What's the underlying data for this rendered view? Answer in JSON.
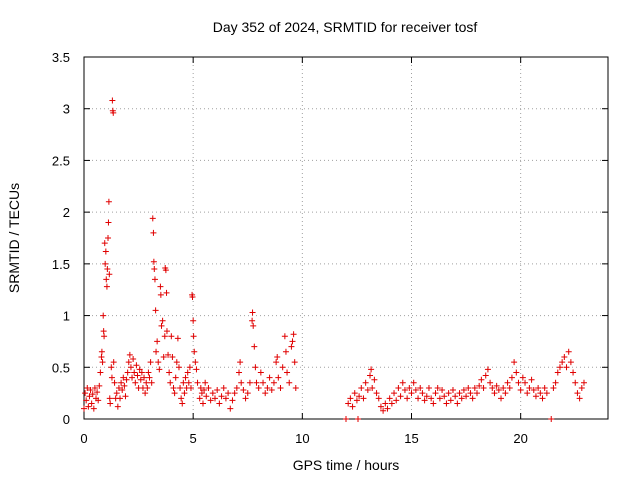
{
  "chart_data": {
    "type": "scatter",
    "title": "Day 352 of 2024, SRMTID for receiver tosf",
    "xlabel": "GPS time / hours",
    "ylabel": "SRMTID / TECUs",
    "xlim": [
      0,
      24
    ],
    "ylim": [
      0,
      3.5
    ],
    "xticks": [
      0,
      5,
      10,
      15,
      20
    ],
    "xtick_labels": [
      "0",
      "5",
      "10",
      "15",
      "20"
    ],
    "yticks": [
      0,
      0.5,
      1,
      1.5,
      2,
      2.5,
      3,
      3.5
    ],
    "ytick_labels": [
      "0",
      "0.5",
      "1",
      "1.5",
      "2",
      "2.5",
      "3",
      "3.5"
    ],
    "grid": true,
    "marker": "+",
    "color": "#e00000",
    "series": [
      {
        "name": "SRMTID",
        "points": [
          [
            0.0,
            0.1
          ],
          [
            0.05,
            0.25
          ],
          [
            0.1,
            0.18
          ],
          [
            0.15,
            0.3
          ],
          [
            0.2,
            0.12
          ],
          [
            0.25,
            0.22
          ],
          [
            0.3,
            0.28
          ],
          [
            0.35,
            0.15
          ],
          [
            0.4,
            0.24
          ],
          [
            0.45,
            0.1
          ],
          [
            0.5,
            0.3
          ],
          [
            0.55,
            0.2
          ],
          [
            0.6,
            0.26
          ],
          [
            0.65,
            0.18
          ],
          [
            0.7,
            0.32
          ],
          [
            0.75,
            0.45
          ],
          [
            0.8,
            0.6
          ],
          [
            0.82,
            0.65
          ],
          [
            0.85,
            0.55
          ],
          [
            0.88,
            1.0
          ],
          [
            0.9,
            0.85
          ],
          [
            0.92,
            0.8
          ],
          [
            0.95,
            1.7
          ],
          [
            0.97,
            1.5
          ],
          [
            1.0,
            1.62
          ],
          [
            1.02,
            1.35
          ],
          [
            1.05,
            1.28
          ],
          [
            1.07,
            1.45
          ],
          [
            1.1,
            1.75
          ],
          [
            1.12,
            1.9
          ],
          [
            1.14,
            2.1
          ],
          [
            1.16,
            1.4
          ],
          [
            1.18,
            0.2
          ],
          [
            1.2,
            0.15
          ],
          [
            1.25,
            0.5
          ],
          [
            1.28,
            0.4
          ],
          [
            1.3,
            3.08
          ],
          [
            1.32,
            2.98
          ],
          [
            1.34,
            2.96
          ],
          [
            1.36,
            0.55
          ],
          [
            1.4,
            0.35
          ],
          [
            1.45,
            0.2
          ],
          [
            1.5,
            0.25
          ],
          [
            1.55,
            0.12
          ],
          [
            1.6,
            0.3
          ],
          [
            1.65,
            0.2
          ],
          [
            1.7,
            0.35
          ],
          [
            1.75,
            0.28
          ],
          [
            1.8,
            0.4
          ],
          [
            1.85,
            0.32
          ],
          [
            1.9,
            0.22
          ],
          [
            1.95,
            0.38
          ],
          [
            2.0,
            0.45
          ],
          [
            2.05,
            0.55
          ],
          [
            2.1,
            0.62
          ],
          [
            2.15,
            0.5
          ],
          [
            2.2,
            0.4
          ],
          [
            2.25,
            0.58
          ],
          [
            2.3,
            0.45
          ],
          [
            2.35,
            0.35
          ],
          [
            2.4,
            0.52
          ],
          [
            2.45,
            0.42
          ],
          [
            2.5,
            0.3
          ],
          [
            2.55,
            0.48
          ],
          [
            2.6,
            0.38
          ],
          [
            2.65,
            0.45
          ],
          [
            2.7,
            0.3
          ],
          [
            2.75,
            0.4
          ],
          [
            2.8,
            0.25
          ],
          [
            2.85,
            0.35
          ],
          [
            2.9,
            0.3
          ],
          [
            2.95,
            0.45
          ],
          [
            3.0,
            0.4
          ],
          [
            3.05,
            0.55
          ],
          [
            3.1,
            0.35
          ],
          [
            3.15,
            1.94
          ],
          [
            3.18,
            1.8
          ],
          [
            3.2,
            1.52
          ],
          [
            3.22,
            1.45
          ],
          [
            3.25,
            1.35
          ],
          [
            3.28,
            1.05
          ],
          [
            3.3,
            0.65
          ],
          [
            3.35,
            0.75
          ],
          [
            3.4,
            0.55
          ],
          [
            3.45,
            0.48
          ],
          [
            3.5,
            1.28
          ],
          [
            3.52,
            1.2
          ],
          [
            3.55,
            0.9
          ],
          [
            3.6,
            0.95
          ],
          [
            3.65,
            0.6
          ],
          [
            3.7,
            0.8
          ],
          [
            3.72,
            1.46
          ],
          [
            3.75,
            1.44
          ],
          [
            3.78,
            1.22
          ],
          [
            3.8,
            0.85
          ],
          [
            3.85,
            0.62
          ],
          [
            3.9,
            0.45
          ],
          [
            3.95,
            0.35
          ],
          [
            4.0,
            0.8
          ],
          [
            4.05,
            0.6
          ],
          [
            4.1,
            0.3
          ],
          [
            4.15,
            0.25
          ],
          [
            4.2,
            0.4
          ],
          [
            4.25,
            0.55
          ],
          [
            4.3,
            0.78
          ],
          [
            4.35,
            0.5
          ],
          [
            4.4,
            0.3
          ],
          [
            4.45,
            0.2
          ],
          [
            4.5,
            0.15
          ],
          [
            4.55,
            0.35
          ],
          [
            4.6,
            0.25
          ],
          [
            4.65,
            0.4
          ],
          [
            4.7,
            0.3
          ],
          [
            4.75,
            0.45
          ],
          [
            4.8,
            0.35
          ],
          [
            4.85,
            0.5
          ],
          [
            4.9,
            0.3
          ],
          [
            4.95,
            1.2
          ],
          [
            4.97,
            1.18
          ],
          [
            5.0,
            0.95
          ],
          [
            5.02,
            0.8
          ],
          [
            5.05,
            0.65
          ],
          [
            5.1,
            0.55
          ],
          [
            5.15,
            0.48
          ],
          [
            5.2,
            0.35
          ],
          [
            5.3,
            0.2
          ],
          [
            5.35,
            0.3
          ],
          [
            5.4,
            0.25
          ],
          [
            5.45,
            0.15
          ],
          [
            5.5,
            0.28
          ],
          [
            5.55,
            0.35
          ],
          [
            5.6,
            0.22
          ],
          [
            5.7,
            0.3
          ],
          [
            5.8,
            0.18
          ],
          [
            5.9,
            0.25
          ],
          [
            6.0,
            0.2
          ],
          [
            6.1,
            0.28
          ],
          [
            6.2,
            0.15
          ],
          [
            6.3,
            0.22
          ],
          [
            6.4,
            0.3
          ],
          [
            6.5,
            0.2
          ],
          [
            6.6,
            0.25
          ],
          [
            6.7,
            0.1
          ],
          [
            6.8,
            0.18
          ],
          [
            6.9,
            0.25
          ],
          [
            7.0,
            0.3
          ],
          [
            7.1,
            0.45
          ],
          [
            7.15,
            0.55
          ],
          [
            7.2,
            0.35
          ],
          [
            7.3,
            0.28
          ],
          [
            7.4,
            0.2
          ],
          [
            7.5,
            0.25
          ],
          [
            7.6,
            0.35
          ],
          [
            7.7,
            0.95
          ],
          [
            7.72,
            1.03
          ],
          [
            7.75,
            0.9
          ],
          [
            7.8,
            0.7
          ],
          [
            7.85,
            0.5
          ],
          [
            7.9,
            0.35
          ],
          [
            8.0,
            0.3
          ],
          [
            8.1,
            0.45
          ],
          [
            8.2,
            0.35
          ],
          [
            8.3,
            0.25
          ],
          [
            8.4,
            0.3
          ],
          [
            8.5,
            0.4
          ],
          [
            8.6,
            0.28
          ],
          [
            8.7,
            0.35
          ],
          [
            8.8,
            0.55
          ],
          [
            8.85,
            0.6
          ],
          [
            8.9,
            0.4
          ],
          [
            9.0,
            0.3
          ],
          [
            9.1,
            0.5
          ],
          [
            9.2,
            0.8
          ],
          [
            9.25,
            0.65
          ],
          [
            9.3,
            0.45
          ],
          [
            9.4,
            0.35
          ],
          [
            9.5,
            0.7
          ],
          [
            9.55,
            0.75
          ],
          [
            9.6,
            0.82
          ],
          [
            9.65,
            0.55
          ],
          [
            9.7,
            0.3
          ],
          [
            12.0,
            0.0
          ],
          [
            12.1,
            0.15
          ],
          [
            12.2,
            0.2
          ],
          [
            12.3,
            0.12
          ],
          [
            12.4,
            0.25
          ],
          [
            12.5,
            0.18
          ],
          [
            12.55,
            0.0
          ],
          [
            12.6,
            0.22
          ],
          [
            12.7,
            0.3
          ],
          [
            12.8,
            0.2
          ],
          [
            12.9,
            0.35
          ],
          [
            13.0,
            0.28
          ],
          [
            13.1,
            0.42
          ],
          [
            13.15,
            0.48
          ],
          [
            13.2,
            0.3
          ],
          [
            13.3,
            0.38
          ],
          [
            13.4,
            0.25
          ],
          [
            13.5,
            0.2
          ],
          [
            13.6,
            0.12
          ],
          [
            13.7,
            0.08
          ],
          [
            13.8,
            0.15
          ],
          [
            13.9,
            0.1
          ],
          [
            14.0,
            0.2
          ],
          [
            14.1,
            0.15
          ],
          [
            14.2,
            0.25
          ],
          [
            14.3,
            0.18
          ],
          [
            14.4,
            0.3
          ],
          [
            14.5,
            0.22
          ],
          [
            14.6,
            0.35
          ],
          [
            14.7,
            0.28
          ],
          [
            14.8,
            0.2
          ],
          [
            14.9,
            0.3
          ],
          [
            15.0,
            0.25
          ],
          [
            15.1,
            0.35
          ],
          [
            15.2,
            0.28
          ],
          [
            15.3,
            0.2
          ],
          [
            15.4,
            0.3
          ],
          [
            15.5,
            0.25
          ],
          [
            15.6,
            0.18
          ],
          [
            15.7,
            0.22
          ],
          [
            15.8,
            0.3
          ],
          [
            15.9,
            0.2
          ],
          [
            16.0,
            0.15
          ],
          [
            16.1,
            0.25
          ],
          [
            16.2,
            0.3
          ],
          [
            16.3,
            0.2
          ],
          [
            16.4,
            0.28
          ],
          [
            16.5,
            0.22
          ],
          [
            16.6,
            0.15
          ],
          [
            16.7,
            0.25
          ],
          [
            16.8,
            0.18
          ],
          [
            16.9,
            0.28
          ],
          [
            17.0,
            0.22
          ],
          [
            17.1,
            0.15
          ],
          [
            17.2,
            0.25
          ],
          [
            17.3,
            0.2
          ],
          [
            17.4,
            0.28
          ],
          [
            17.5,
            0.22
          ],
          [
            17.6,
            0.3
          ],
          [
            17.7,
            0.25
          ],
          [
            17.8,
            0.2
          ],
          [
            17.9,
            0.3
          ],
          [
            18.0,
            0.25
          ],
          [
            18.1,
            0.32
          ],
          [
            18.2,
            0.38
          ],
          [
            18.3,
            0.3
          ],
          [
            18.4,
            0.42
          ],
          [
            18.5,
            0.48
          ],
          [
            18.6,
            0.35
          ],
          [
            18.7,
            0.3
          ],
          [
            18.8,
            0.25
          ],
          [
            18.9,
            0.32
          ],
          [
            19.0,
            0.28
          ],
          [
            19.1,
            0.2
          ],
          [
            19.2,
            0.3
          ],
          [
            19.3,
            0.25
          ],
          [
            19.4,
            0.35
          ],
          [
            19.5,
            0.3
          ],
          [
            19.6,
            0.4
          ],
          [
            19.7,
            0.55
          ],
          [
            19.8,
            0.45
          ],
          [
            19.9,
            0.35
          ],
          [
            20.0,
            0.28
          ],
          [
            20.1,
            0.4
          ],
          [
            20.2,
            0.35
          ],
          [
            20.3,
            0.25
          ],
          [
            20.4,
            0.3
          ],
          [
            20.5,
            0.38
          ],
          [
            20.6,
            0.28
          ],
          [
            20.7,
            0.22
          ],
          [
            20.8,
            0.3
          ],
          [
            20.9,
            0.25
          ],
          [
            21.0,
            0.2
          ],
          [
            21.1,
            0.3
          ],
          [
            21.2,
            0.25
          ],
          [
            21.4,
            0.0
          ],
          [
            21.5,
            0.3
          ],
          [
            21.6,
            0.35
          ],
          [
            21.7,
            0.45
          ],
          [
            21.8,
            0.5
          ],
          [
            21.9,
            0.55
          ],
          [
            22.0,
            0.6
          ],
          [
            22.1,
            0.5
          ],
          [
            22.2,
            0.65
          ],
          [
            22.3,
            0.55
          ],
          [
            22.4,
            0.45
          ],
          [
            22.5,
            0.35
          ],
          [
            22.6,
            0.25
          ],
          [
            22.7,
            0.2
          ],
          [
            22.8,
            0.3
          ],
          [
            22.9,
            0.35
          ]
        ]
      }
    ]
  }
}
